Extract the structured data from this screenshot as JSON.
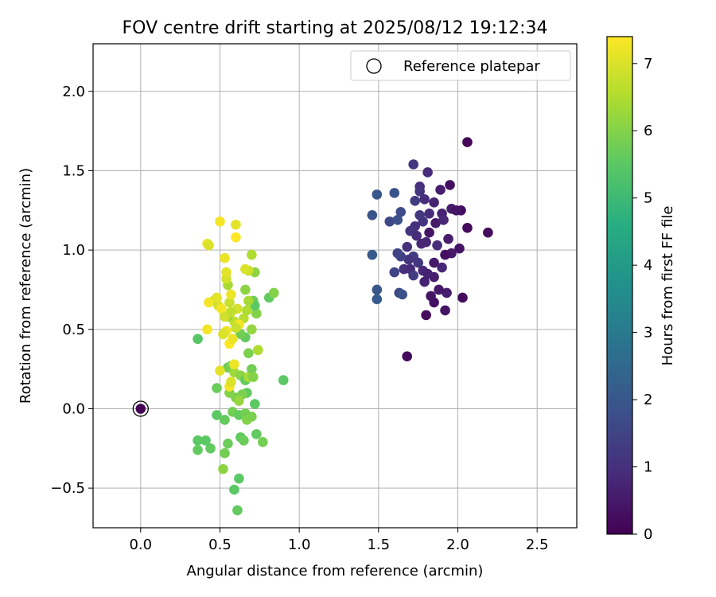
{
  "chart_data": {
    "type": "scatter",
    "title": "FOV centre drift starting at 2025/08/12 19:12:34",
    "xlabel": "Angular distance from reference (arcmin)",
    "ylabel": "Rotation from reference (arcmin)",
    "xlim": [
      -0.3,
      2.75
    ],
    "ylim": [
      -0.75,
      2.3
    ],
    "xticks": [
      0.0,
      0.5,
      1.0,
      1.5,
      2.0,
      2.5
    ],
    "xtick_labels": [
      "0.0",
      "0.5",
      "1.0",
      "1.5",
      "2.0",
      "2.5"
    ],
    "yticks": [
      -0.5,
      0.0,
      0.5,
      1.0,
      1.5,
      2.0
    ],
    "ytick_labels": [
      "−0.5",
      "0.0",
      "0.5",
      "1.0",
      "1.5",
      "2.0"
    ],
    "grid": true,
    "legend": {
      "position": "top-right",
      "entries": [
        "Reference platepar"
      ]
    },
    "reference_point": {
      "x": 0.0,
      "y": 0.0,
      "label": "Reference platepar"
    },
    "colorbar": {
      "label": "Hours from first FF file",
      "colormap": "viridis",
      "range": [
        0,
        7.4
      ],
      "ticks": [
        0,
        1,
        2,
        3,
        4,
        5,
        6,
        7
      ],
      "tick_labels": [
        "0",
        "1",
        "2",
        "3",
        "4",
        "5",
        "6",
        "7"
      ]
    },
    "points": [
      {
        "x": 2.06,
        "y": 1.68,
        "h": 0.1
      },
      {
        "x": 2.19,
        "y": 1.11,
        "h": 0.2
      },
      {
        "x": 1.95,
        "y": 1.41,
        "h": 0.3
      },
      {
        "x": 2.02,
        "y": 1.25,
        "h": 0.3
      },
      {
        "x": 2.06,
        "y": 1.14,
        "h": 0.2
      },
      {
        "x": 2.01,
        "y": 1.01,
        "h": 0.4
      },
      {
        "x": 2.03,
        "y": 0.7,
        "h": 0.2
      },
      {
        "x": 1.96,
        "y": 0.98,
        "h": 0.5
      },
      {
        "x": 1.92,
        "y": 0.62,
        "h": 0.4
      },
      {
        "x": 1.93,
        "y": 0.73,
        "h": 0.6
      },
      {
        "x": 1.85,
        "y": 0.67,
        "h": 0.3
      },
      {
        "x": 1.8,
        "y": 0.59,
        "h": 0.2
      },
      {
        "x": 1.68,
        "y": 0.33,
        "h": 0.2
      },
      {
        "x": 1.88,
        "y": 0.75,
        "h": 0.5
      },
      {
        "x": 1.85,
        "y": 0.83,
        "h": 0.6
      },
      {
        "x": 1.79,
        "y": 0.8,
        "h": 0.7
      },
      {
        "x": 1.83,
        "y": 0.71,
        "h": 0.4
      },
      {
        "x": 1.85,
        "y": 0.92,
        "h": 0.5
      },
      {
        "x": 1.9,
        "y": 0.89,
        "h": 0.8
      },
      {
        "x": 1.92,
        "y": 0.97,
        "h": 0.3
      },
      {
        "x": 1.94,
        "y": 1.07,
        "h": 0.6
      },
      {
        "x": 1.87,
        "y": 1.03,
        "h": 0.9
      },
      {
        "x": 1.8,
        "y": 1.05,
        "h": 0.8
      },
      {
        "x": 1.82,
        "y": 1.11,
        "h": 0.4
      },
      {
        "x": 1.86,
        "y": 1.17,
        "h": 0.5
      },
      {
        "x": 1.9,
        "y": 1.23,
        "h": 0.7
      },
      {
        "x": 1.96,
        "y": 1.26,
        "h": 0.6
      },
      {
        "x": 1.99,
        "y": 1.25,
        "h": 0.4
      },
      {
        "x": 1.91,
        "y": 1.19,
        "h": 0.8
      },
      {
        "x": 1.89,
        "y": 1.38,
        "h": 0.6
      },
      {
        "x": 1.85,
        "y": 1.3,
        "h": 0.7
      },
      {
        "x": 1.82,
        "y": 1.23,
        "h": 0.9
      },
      {
        "x": 1.79,
        "y": 1.32,
        "h": 1.0
      },
      {
        "x": 1.78,
        "y": 1.18,
        "h": 1.1
      },
      {
        "x": 1.76,
        "y": 1.4,
        "h": 1.0
      },
      {
        "x": 1.81,
        "y": 1.49,
        "h": 0.9
      },
      {
        "x": 1.72,
        "y": 1.54,
        "h": 1.2
      },
      {
        "x": 1.76,
        "y": 1.37,
        "h": 1.1
      },
      {
        "x": 1.73,
        "y": 1.31,
        "h": 1.3
      },
      {
        "x": 1.76,
        "y": 1.22,
        "h": 1.2
      },
      {
        "x": 1.73,
        "y": 1.15,
        "h": 1.0
      },
      {
        "x": 1.7,
        "y": 1.12,
        "h": 1.1
      },
      {
        "x": 1.74,
        "y": 1.09,
        "h": 0.9
      },
      {
        "x": 1.77,
        "y": 1.04,
        "h": 0.8
      },
      {
        "x": 1.68,
        "y": 1.02,
        "h": 1.0
      },
      {
        "x": 1.72,
        "y": 0.96,
        "h": 1.3
      },
      {
        "x": 1.69,
        "y": 0.94,
        "h": 1.1
      },
      {
        "x": 1.75,
        "y": 0.92,
        "h": 1.2
      },
      {
        "x": 1.66,
        "y": 0.88,
        "h": 1.0
      },
      {
        "x": 1.7,
        "y": 0.88,
        "h": 0.9
      },
      {
        "x": 1.78,
        "y": 0.87,
        "h": 0.8
      },
      {
        "x": 1.81,
        "y": 0.85,
        "h": 0.7
      },
      {
        "x": 1.72,
        "y": 0.84,
        "h": 1.3
      },
      {
        "x": 1.64,
        "y": 0.96,
        "h": 1.4
      },
      {
        "x": 1.62,
        "y": 0.98,
        "h": 1.5
      },
      {
        "x": 1.57,
        "y": 1.18,
        "h": 1.6
      },
      {
        "x": 1.62,
        "y": 1.19,
        "h": 1.8
      },
      {
        "x": 1.64,
        "y": 1.24,
        "h": 1.7
      },
      {
        "x": 1.6,
        "y": 1.36,
        "h": 1.9
      },
      {
        "x": 1.49,
        "y": 1.35,
        "h": 2.0
      },
      {
        "x": 1.46,
        "y": 1.22,
        "h": 1.9
      },
      {
        "x": 1.46,
        "y": 0.97,
        "h": 2.1
      },
      {
        "x": 1.49,
        "y": 0.75,
        "h": 2.0
      },
      {
        "x": 1.49,
        "y": 0.69,
        "h": 2.1
      },
      {
        "x": 1.6,
        "y": 0.86,
        "h": 1.5
      },
      {
        "x": 1.63,
        "y": 0.73,
        "h": 1.6
      },
      {
        "x": 1.65,
        "y": 0.72,
        "h": 1.8
      },
      {
        "x": 0.36,
        "y": 0.44,
        "h": 5.4
      },
      {
        "x": 0.36,
        "y": -0.2,
        "h": 5.5
      },
      {
        "x": 0.36,
        "y": -0.26,
        "h": 5.6
      },
      {
        "x": 0.41,
        "y": -0.2,
        "h": 5.5
      },
      {
        "x": 0.44,
        "y": -0.25,
        "h": 5.6
      },
      {
        "x": 0.48,
        "y": -0.04,
        "h": 5.5
      },
      {
        "x": 0.48,
        "y": 0.13,
        "h": 5.7
      },
      {
        "x": 0.53,
        "y": -0.07,
        "h": 5.6
      },
      {
        "x": 0.53,
        "y": -0.28,
        "h": 5.8
      },
      {
        "x": 0.52,
        "y": -0.38,
        "h": 6.1
      },
      {
        "x": 0.55,
        "y": -0.22,
        "h": 5.7
      },
      {
        "x": 0.59,
        "y": -0.51,
        "h": 5.5
      },
      {
        "x": 0.61,
        "y": -0.64,
        "h": 5.6
      },
      {
        "x": 0.62,
        "y": -0.44,
        "h": 5.5
      },
      {
        "x": 0.63,
        "y": -0.18,
        "h": 5.6
      },
      {
        "x": 0.65,
        "y": -0.2,
        "h": 5.7
      },
      {
        "x": 0.58,
        "y": -0.02,
        "h": 5.8
      },
      {
        "x": 0.6,
        "y": 0.07,
        "h": 5.9
      },
      {
        "x": 0.62,
        "y": -0.04,
        "h": 5.6
      },
      {
        "x": 0.66,
        "y": -0.03,
        "h": 5.8
      },
      {
        "x": 0.67,
        "y": -0.07,
        "h": 6.0
      },
      {
        "x": 0.7,
        "y": -0.05,
        "h": 5.9
      },
      {
        "x": 0.72,
        "y": 0.03,
        "h": 5.5
      },
      {
        "x": 0.73,
        "y": -0.16,
        "h": 5.6
      },
      {
        "x": 0.77,
        "y": -0.21,
        "h": 5.8
      },
      {
        "x": 0.67,
        "y": 0.1,
        "h": 5.6
      },
      {
        "x": 0.64,
        "y": 0.09,
        "h": 5.9
      },
      {
        "x": 0.62,
        "y": 0.05,
        "h": 6.2
      },
      {
        "x": 0.56,
        "y": 0.1,
        "h": 6.0
      },
      {
        "x": 0.55,
        "y": 0.26,
        "h": 5.7
      },
      {
        "x": 0.57,
        "y": 0.27,
        "h": 5.9
      },
      {
        "x": 0.59,
        "y": 0.23,
        "h": 6.3
      },
      {
        "x": 0.63,
        "y": 0.21,
        "h": 6.1
      },
      {
        "x": 0.66,
        "y": 0.18,
        "h": 5.6
      },
      {
        "x": 0.68,
        "y": 0.2,
        "h": 6.4
      },
      {
        "x": 0.7,
        "y": 0.25,
        "h": 5.8
      },
      {
        "x": 0.71,
        "y": 0.2,
        "h": 6.0
      },
      {
        "x": 0.9,
        "y": 0.18,
        "h": 5.5
      },
      {
        "x": 0.68,
        "y": 0.35,
        "h": 5.9
      },
      {
        "x": 0.74,
        "y": 0.37,
        "h": 6.5
      },
      {
        "x": 0.66,
        "y": 0.45,
        "h": 5.6
      },
      {
        "x": 0.63,
        "y": 0.47,
        "h": 5.8
      },
      {
        "x": 0.7,
        "y": 0.5,
        "h": 6.2
      },
      {
        "x": 0.73,
        "y": 0.6,
        "h": 6.0
      },
      {
        "x": 0.71,
        "y": 0.68,
        "h": 5.7
      },
      {
        "x": 0.72,
        "y": 0.65,
        "h": 5.5
      },
      {
        "x": 0.81,
        "y": 0.7,
        "h": 5.6
      },
      {
        "x": 0.84,
        "y": 0.73,
        "h": 6.0
      },
      {
        "x": 0.66,
        "y": 0.75,
        "h": 6.1
      },
      {
        "x": 0.68,
        "y": 0.68,
        "h": 6.4
      },
      {
        "x": 0.65,
        "y": 0.57,
        "h": 6.6
      },
      {
        "x": 0.67,
        "y": 0.62,
        "h": 6.5
      },
      {
        "x": 0.72,
        "y": 0.86,
        "h": 6.1
      },
      {
        "x": 0.68,
        "y": 0.87,
        "h": 6.8
      },
      {
        "x": 0.7,
        "y": 0.97,
        "h": 6.5
      },
      {
        "x": 0.66,
        "y": 0.88,
        "h": 7.0
      },
      {
        "x": 0.61,
        "y": 0.63,
        "h": 6.9
      },
      {
        "x": 0.59,
        "y": 0.55,
        "h": 6.7
      },
      {
        "x": 0.55,
        "y": 0.58,
        "h": 6.3
      },
      {
        "x": 0.56,
        "y": 0.67,
        "h": 6.8
      },
      {
        "x": 0.55,
        "y": 0.78,
        "h": 6.4
      },
      {
        "x": 0.54,
        "y": 0.82,
        "h": 6.9
      },
      {
        "x": 0.54,
        "y": 0.86,
        "h": 7.1
      },
      {
        "x": 0.53,
        "y": 0.95,
        "h": 7.2
      },
      {
        "x": 0.49,
        "y": 0.65,
        "h": 7.0
      },
      {
        "x": 0.46,
        "y": 0.68,
        "h": 6.8
      },
      {
        "x": 0.43,
        "y": 0.67,
        "h": 7.3
      },
      {
        "x": 0.42,
        "y": 1.04,
        "h": 7.2
      },
      {
        "x": 0.43,
        "y": 1.03,
        "h": 7.0
      },
      {
        "x": 0.5,
        "y": 1.18,
        "h": 7.3
      },
      {
        "x": 0.6,
        "y": 1.16,
        "h": 7.1
      },
      {
        "x": 0.6,
        "y": 1.08,
        "h": 7.4
      },
      {
        "x": 0.48,
        "y": 0.7,
        "h": 7.1
      },
      {
        "x": 0.51,
        "y": 0.63,
        "h": 7.3
      },
      {
        "x": 0.53,
        "y": 0.58,
        "h": 6.9
      },
      {
        "x": 0.57,
        "y": 0.72,
        "h": 7.2
      },
      {
        "x": 0.57,
        "y": 0.61,
        "h": 6.7
      },
      {
        "x": 0.54,
        "y": 0.49,
        "h": 7.2
      },
      {
        "x": 0.52,
        "y": 0.47,
        "h": 7.0
      },
      {
        "x": 0.42,
        "y": 0.5,
        "h": 7.3
      },
      {
        "x": 0.56,
        "y": 0.41,
        "h": 7.4
      },
      {
        "x": 0.58,
        "y": 0.44,
        "h": 7.2
      },
      {
        "x": 0.62,
        "y": 0.53,
        "h": 7.3
      },
      {
        "x": 0.6,
        "y": 0.51,
        "h": 6.8
      },
      {
        "x": 0.5,
        "y": 0.24,
        "h": 7.1
      },
      {
        "x": 0.59,
        "y": 0.28,
        "h": 7.2
      },
      {
        "x": 0.56,
        "y": 0.14,
        "h": 7.3
      },
      {
        "x": 0.57,
        "y": 0.17,
        "h": 7.0
      }
    ]
  }
}
